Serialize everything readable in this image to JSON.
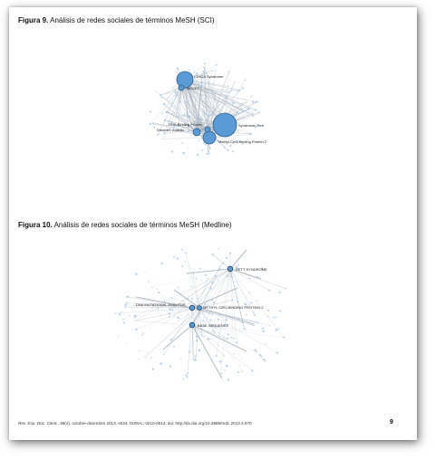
{
  "figure9": {
    "label": "Figura 9.",
    "title": "Análisis de redes sociales de términos MeSH (SCI)",
    "node_labels": [
      "CDKL5 Syndrome",
      "MECP2",
      "RNA-Binding Protein",
      "Disorder, Autistic",
      "Syndrome, Rett",
      "Methyl-CpG Binding Protein 2"
    ]
  },
  "figure10": {
    "label": "Figura 10.",
    "title": "Análisis de redes sociales de términos MeSH (Medline)",
    "node_labels": [
      "RETT SYNDROME",
      "DNA MUTATIONAL ANALYSIS",
      "METHYL-CPG-BINDING PROTEIN 2",
      "BASE SEQUENCE"
    ]
  },
  "footer": {
    "journal": "Rev. Esp. Doc. Cient.",
    "citation": ", 36(4), octubre-diciembre 2013, e024. ISSN-L: 0210-0614. doi: http://dx.doi.org/10.3989/redc.2013.4.970",
    "page_number": "9"
  },
  "colors": {
    "node_fill": "#5b9bd5",
    "node_stroke": "#2e5f8a",
    "edge": "#9aa6b2",
    "small_node": "#9ec3e6"
  }
}
